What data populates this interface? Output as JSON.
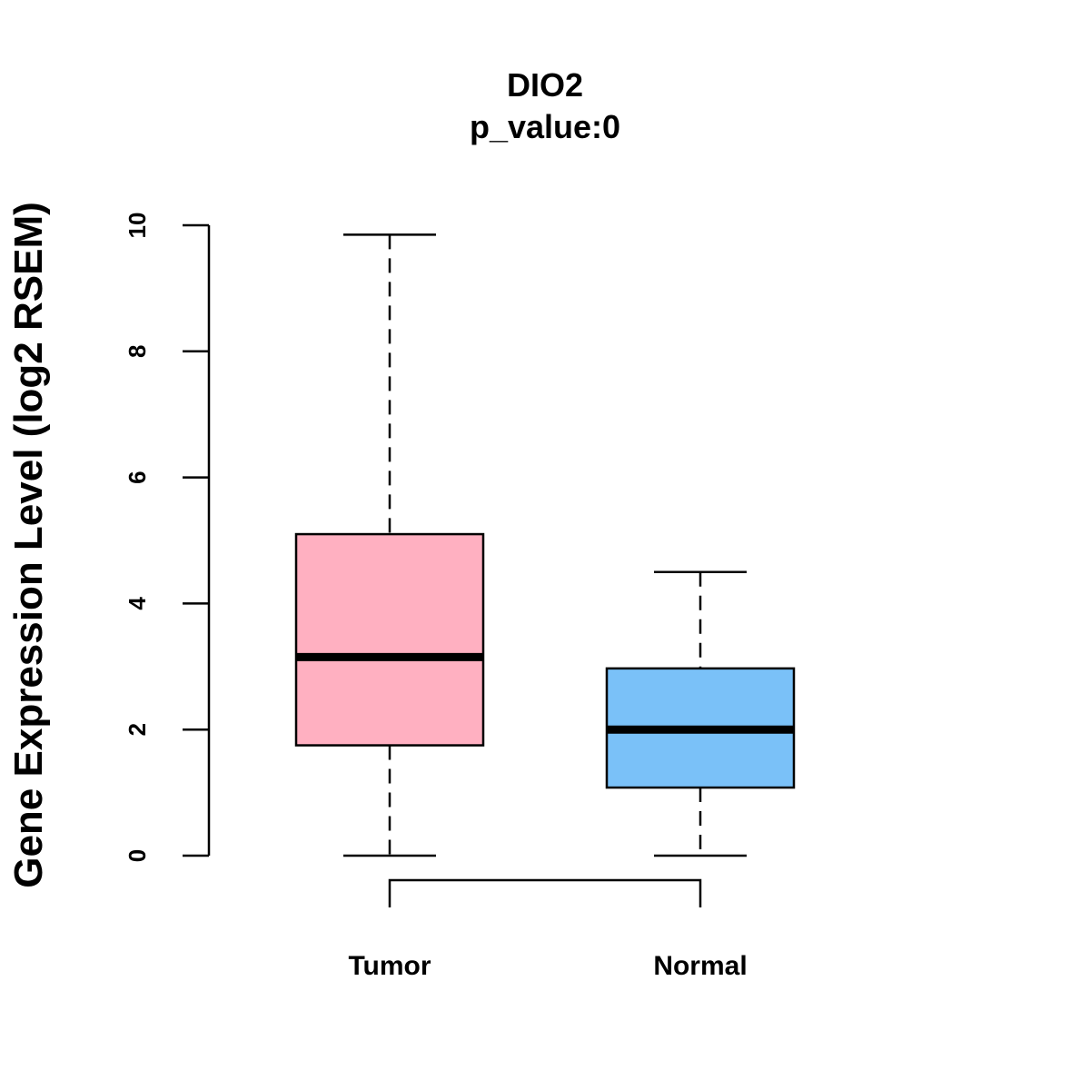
{
  "chart_data": {
    "type": "boxplot",
    "title": "DIO2",
    "subtitle": "p_value:0",
    "xlabel": "",
    "ylabel": "Gene Expression Level (log2 RSEM)",
    "ylim": [
      0,
      10
    ],
    "yticks": [
      0,
      2,
      4,
      6,
      8,
      10
    ],
    "grid": false,
    "categories": [
      "Tumor",
      "Normal"
    ],
    "boxes": [
      {
        "name": "Tumor",
        "whisker_low": 0,
        "q1": 1.75,
        "median": 3.15,
        "q3": 5.1,
        "whisker_high": 9.85,
        "color": "#FFB0C1"
      },
      {
        "name": "Normal",
        "whisker_low": 0,
        "q1": 1.08,
        "median": 2.0,
        "q3": 2.97,
        "whisker_high": 4.5,
        "color": "#7AC1F8"
      }
    ],
    "comparison": {
      "between": [
        "Tumor",
        "Normal"
      ],
      "label": ""
    }
  }
}
